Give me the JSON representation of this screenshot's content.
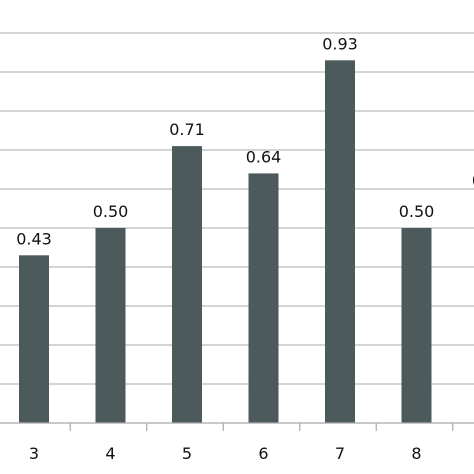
{
  "chart_data": {
    "type": "bar",
    "categories": [
      "3",
      "4",
      "5",
      "6",
      "7",
      "8",
      ""
    ],
    "values": [
      0.43,
      0.5,
      0.71,
      0.64,
      0.93,
      0.5,
      null
    ],
    "data_labels": [
      "0.43",
      "0.50",
      "0.71",
      "0.64",
      "0.93",
      "0.50",
      ""
    ],
    "partial_label_fragment": "0",
    "title": "",
    "xlabel": "",
    "ylabel": "",
    "ylim": [
      0,
      1.0
    ],
    "grid": true,
    "legend": "none",
    "bar_color": "#4d5a5c",
    "grid_color": "#a8a8a8"
  }
}
